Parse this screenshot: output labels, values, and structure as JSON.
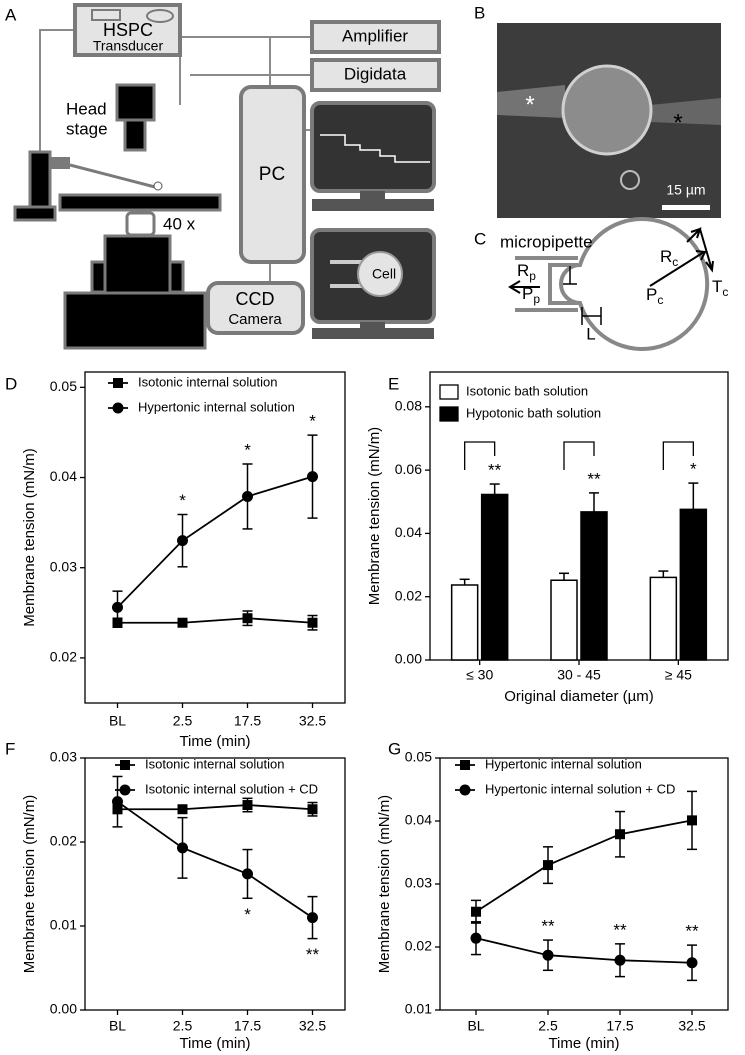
{
  "panel_labels": [
    "A",
    "B",
    "C",
    "D",
    "E",
    "F",
    "G"
  ],
  "diagram_a": {
    "hspc": "HSPC",
    "transducer": "Transducer",
    "head": "Head",
    "stage": "stage",
    "amplifier": "Amplifier",
    "digidata": "Digidata",
    "pc": "PC",
    "magnification": "40 x",
    "ccd": "CCD",
    "camera": "Camera",
    "cell": "Cell"
  },
  "image_b": {
    "markers": [
      "*",
      "*"
    ],
    "scale_bar": "15 µm"
  },
  "diagram_c": {
    "micropipette": "micropipette",
    "rp": {
      "base": "R",
      "sub": "p"
    },
    "pp": {
      "base": "P",
      "sub": "p"
    },
    "rc": {
      "base": "R",
      "sub": "c"
    },
    "pc": {
      "base": "P",
      "sub": "c"
    },
    "tc": {
      "base": "T",
      "sub": "c"
    },
    "l": "L"
  },
  "chart_data": [
    {
      "type": "line",
      "xlabel": "Time (min)",
      "ylabel": "Membrane tension (mN/m)",
      "categories": [
        "BL",
        "2.5",
        "17.5",
        "32.5"
      ],
      "ylim": [
        0.015,
        0.0517
      ],
      "yticks": [
        0.02,
        0.03,
        0.04,
        0.05
      ],
      "series": [
        {
          "name": "Isotonic internal solution",
          "color": "#000000",
          "marker": "square",
          "values": [
            0.0239,
            0.0239,
            0.0244,
            0.0239
          ],
          "errors": [
            0.0005,
            0.0004,
            0.0008,
            0.0008
          ],
          "sig_labels": [
            null,
            null,
            null,
            null
          ]
        },
        {
          "name": "Hypertonic internal solution",
          "color": "#000000",
          "marker": "circle",
          "values": [
            0.0256,
            0.033,
            0.0379,
            0.0401
          ],
          "errors": [
            0.0018,
            0.0029,
            0.0036,
            0.0046
          ],
          "sig_labels": [
            null,
            "*",
            "*",
            "*"
          ]
        }
      ]
    },
    {
      "type": "bar",
      "xlabel": "Original diameter (µm)",
      "ylabel": "Membrane tension (mN/m)",
      "categories": [
        "≤ 30",
        "30 - 45",
        "≥ 45"
      ],
      "ylim": [
        0,
        0.091
      ],
      "yticks": [
        {
          "value": 0,
          "label": "0.00"
        },
        0.02,
        0.04,
        0.06,
        0.08
      ],
      "series": [
        {
          "name": "Isotonic bath solution",
          "color": "#ffffff",
          "values": [
            0.0237,
            0.0252,
            0.0261
          ],
          "errors": [
            0.0018,
            0.0022,
            0.002
          ],
          "sig_labels": [
            null,
            null,
            null
          ]
        },
        {
          "name": "Hypotonic bath solution",
          "color": "#000000",
          "values": [
            0.0523,
            0.0468,
            0.0476
          ],
          "errors": [
            0.0033,
            0.006,
            0.0083
          ],
          "sig_labels": [
            "**",
            "**",
            "*"
          ]
        }
      ]
    },
    {
      "type": "line",
      "xlabel": "Time (min)",
      "ylabel": "Membrane tension (mN/m)",
      "categories": [
        "BL",
        "2.5",
        "17.5",
        "32.5"
      ],
      "ylim": [
        0,
        0.03
      ],
      "yticks": [
        {
          "value": 0,
          "label": "0.00"
        },
        0.01,
        0.02,
        0.03
      ],
      "series": [
        {
          "name": "Isotonic internal solution",
          "color": "#000000",
          "marker": "square",
          "values": [
            0.0239,
            0.0239,
            0.0244,
            0.0239
          ],
          "errors": [
            0.0005,
            0.0004,
            0.0008,
            0.0008
          ],
          "sig_labels": [
            null,
            null,
            null,
            null
          ]
        },
        {
          "name": "Isotonic internal solution + CD",
          "color": "#000000",
          "marker": "circle",
          "values": [
            0.0248,
            0.0193,
            0.0162,
            0.011
          ],
          "errors": [
            0.003,
            0.0036,
            0.0029,
            0.0025
          ],
          "sig_labels": [
            null,
            null,
            "*",
            "**"
          ]
        }
      ]
    },
    {
      "type": "line",
      "xlabel": "Time (min)",
      "ylabel": "Membrane tension (mN/m)",
      "categories": [
        "BL",
        "2.5",
        "17.5",
        "32.5"
      ],
      "ylim": [
        0.01,
        0.05
      ],
      "yticks": [
        0.01,
        0.02,
        0.03,
        0.04,
        0.05
      ],
      "series": [
        {
          "name": "Hypertonic internal solution",
          "color": "#000000",
          "marker": "square",
          "values": [
            0.0256,
            0.033,
            0.0379,
            0.0401
          ],
          "errors": [
            0.0018,
            0.0029,
            0.0036,
            0.0046
          ],
          "sig_labels": [
            null,
            null,
            null,
            null
          ]
        },
        {
          "name": "Hypertonic internal solution + CD",
          "color": "#000000",
          "marker": "circle",
          "values": [
            0.0214,
            0.0187,
            0.0179,
            0.0175
          ],
          "errors": [
            0.0026,
            0.0024,
            0.0026,
            0.0028
          ],
          "sig_labels": [
            null,
            "**",
            "**",
            "**"
          ]
        }
      ]
    }
  ]
}
